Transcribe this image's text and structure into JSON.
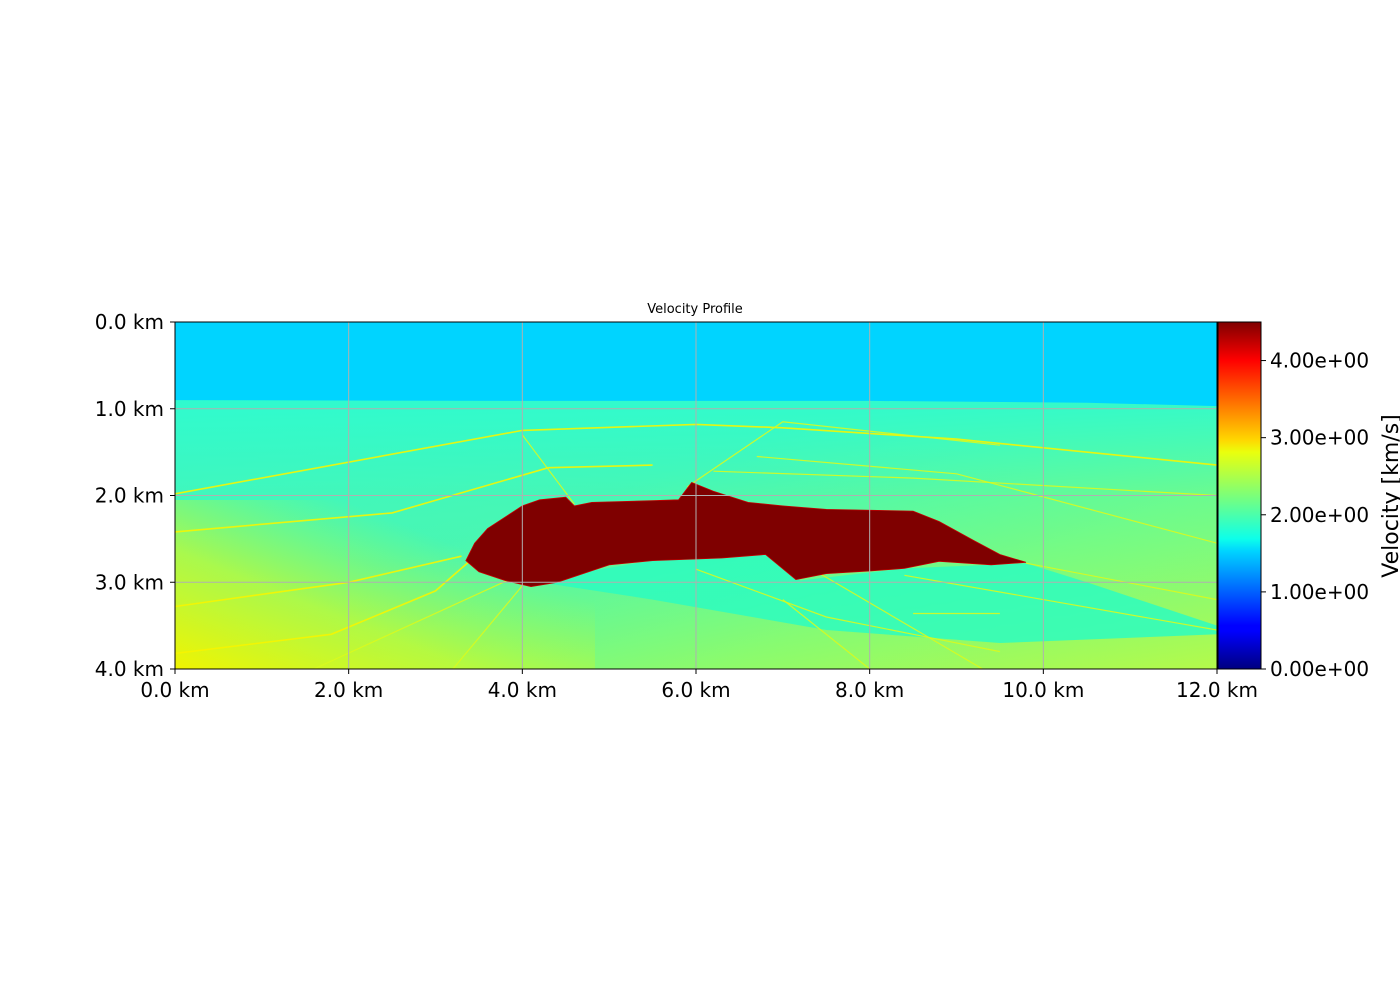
{
  "chart_data": {
    "type": "heatmap",
    "title": "Velocity Profile",
    "xlabel": "",
    "ylabel": "",
    "colormap": "jet",
    "xlim": [
      0,
      12
    ],
    "ylim": [
      0,
      4
    ],
    "y_inverted": true,
    "grid": true,
    "x_ticks": [
      "0.0 km",
      "2.0 km",
      "4.0 km",
      "6.0 km",
      "8.0 km",
      "10.0 km",
      "12.0 km"
    ],
    "x_tick_values": [
      0,
      2,
      4,
      6,
      8,
      10,
      12
    ],
    "y_ticks": [
      "0.0 km",
      "1.0 km",
      "2.0 km",
      "3.0 km",
      "4.0 km"
    ],
    "y_tick_values": [
      0,
      1,
      2,
      3,
      4
    ],
    "colorbar": {
      "label": "Velocity [km/s]",
      "range": [
        0,
        4.5
      ],
      "ticks": [
        "0.00e+00",
        "1.00e+00",
        "2.00e+00",
        "3.00e+00",
        "4.00e+00"
      ],
      "tick_values": [
        0,
        1,
        2,
        3,
        4
      ],
      "placement": "right"
    },
    "layers": {
      "water": {
        "velocity": 1.5,
        "bottom_depth": [
          [
            0,
            0.9
          ],
          [
            4,
            0.91
          ],
          [
            8,
            0.91
          ],
          [
            10.5,
            0.93
          ],
          [
            12,
            0.97
          ]
        ]
      },
      "sediment_velocity_top": 2.0,
      "sediment_velocity_bottom_left": 2.9,
      "salt_velocity": 4.5
    },
    "salt_body_outline": [
      [
        3.35,
        2.75
      ],
      [
        3.45,
        2.55
      ],
      [
        3.6,
        2.38
      ],
      [
        3.8,
        2.25
      ],
      [
        4.0,
        2.12
      ],
      [
        4.2,
        2.05
      ],
      [
        4.5,
        2.02
      ],
      [
        4.6,
        2.12
      ],
      [
        4.8,
        2.08
      ],
      [
        5.5,
        2.06
      ],
      [
        5.8,
        2.05
      ],
      [
        5.95,
        1.85
      ],
      [
        6.2,
        1.95
      ],
      [
        6.6,
        2.08
      ],
      [
        7.0,
        2.12
      ],
      [
        7.5,
        2.16
      ],
      [
        8.5,
        2.18
      ],
      [
        8.8,
        2.3
      ],
      [
        9.2,
        2.52
      ],
      [
        9.5,
        2.68
      ],
      [
        9.8,
        2.77
      ],
      [
        9.4,
        2.8
      ],
      [
        8.8,
        2.76
      ],
      [
        8.4,
        2.84
      ],
      [
        8.0,
        2.87
      ],
      [
        7.5,
        2.9
      ],
      [
        7.15,
        2.97
      ],
      [
        6.8,
        2.68
      ],
      [
        6.3,
        2.72
      ],
      [
        5.5,
        2.75
      ],
      [
        5.0,
        2.8
      ],
      [
        4.7,
        2.9
      ],
      [
        4.4,
        3.0
      ],
      [
        4.1,
        3.05
      ],
      [
        3.8,
        2.98
      ],
      [
        3.5,
        2.88
      ]
    ],
    "slow_wedge_velocity": 2.0,
    "faults": [
      [
        [
          0,
          1.98
        ],
        [
          4.0,
          1.25
        ],
        [
          6.0,
          1.18
        ],
        [
          7.0,
          1.22
        ],
        [
          9.0,
          1.35
        ],
        [
          12.0,
          1.65
        ]
      ],
      [
        [
          0,
          2.42
        ],
        [
          2.5,
          2.2
        ],
        [
          4.3,
          1.68
        ],
        [
          5.5,
          1.65
        ]
      ],
      [
        [
          0,
          3.28
        ],
        [
          2.0,
          3.0
        ],
        [
          3.3,
          2.7
        ]
      ],
      [
        [
          0,
          3.82
        ],
        [
          1.8,
          3.6
        ],
        [
          3.0,
          3.1
        ],
        [
          3.4,
          2.75
        ]
      ],
      [
        [
          1.6,
          4.0
        ],
        [
          4.0,
          2.9
        ]
      ],
      [
        [
          3.2,
          4.0
        ],
        [
          4.1,
          2.92
        ]
      ],
      [
        [
          4.0,
          1.3
        ],
        [
          4.6,
          2.1
        ]
      ],
      [
        [
          5.9,
          1.9
        ],
        [
          7.0,
          1.15
        ],
        [
          9.5,
          1.42
        ]
      ],
      [
        [
          6.2,
          1.72
        ],
        [
          8.5,
          1.8
        ],
        [
          12.0,
          2.0
        ]
      ],
      [
        [
          6.7,
          1.55
        ],
        [
          9.0,
          1.75
        ],
        [
          12.0,
          2.55
        ]
      ],
      [
        [
          8.4,
          2.92
        ],
        [
          12.0,
          3.55
        ]
      ],
      [
        [
          9.8,
          2.78
        ],
        [
          12.0,
          3.2
        ]
      ],
      [
        [
          7.0,
          2.65
        ],
        [
          9.3,
          4.0
        ]
      ],
      [
        [
          6.0,
          2.85
        ],
        [
          7.5,
          3.4
        ],
        [
          9.5,
          3.8
        ]
      ],
      [
        [
          7.0,
          3.2
        ],
        [
          8.0,
          4.0
        ]
      ],
      [
        [
          8.5,
          3.36
        ],
        [
          9.5,
          3.36
        ]
      ]
    ]
  }
}
